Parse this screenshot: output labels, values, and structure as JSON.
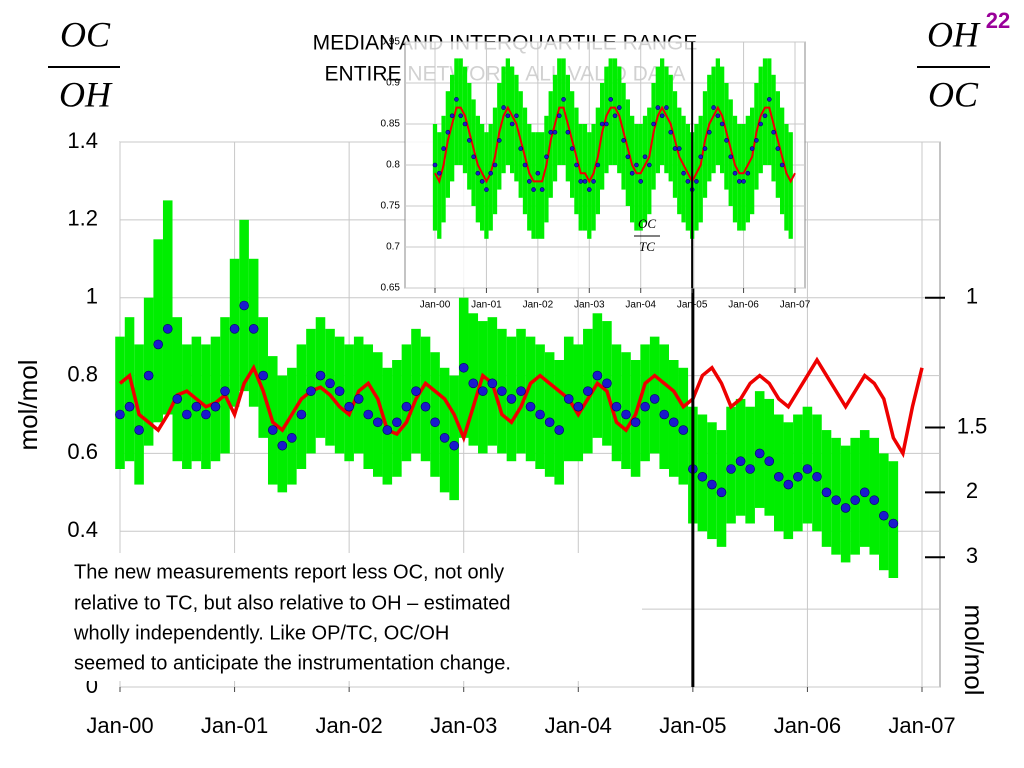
{
  "slide_number": "22",
  "left_fraction": {
    "numerator": "OC",
    "denominator": "OH"
  },
  "right_fraction": {
    "numerator": "OH",
    "denominator": "OC"
  },
  "text_box": [
    "The new measurements report less OC, not only",
    "relative to TC, but also relative to OH – estimated",
    "wholly independently.  Like OP/TC, OC/OH",
    "seemed to anticipate the instrumentation change."
  ],
  "chart_data": [
    {
      "type": "line",
      "title": [
        "MEDIAN AND INTERQUARTILE RANGE",
        "ENTIRE NETWORK, ALL VALID DATA"
      ],
      "ylabel": "mol/mol",
      "y2label": "mol/mol",
      "categories": [
        "Jan-00",
        null,
        null,
        null,
        null,
        null,
        null,
        null,
        null,
        null,
        null,
        null,
        "Jan-01",
        null,
        null,
        null,
        null,
        null,
        null,
        null,
        null,
        null,
        null,
        null,
        "Jan-02",
        null,
        null,
        null,
        null,
        null,
        null,
        null,
        null,
        null,
        null,
        null,
        "Jan-03",
        null,
        null,
        null,
        null,
        null,
        null,
        null,
        null,
        null,
        null,
        null,
        "Jan-04",
        null,
        null,
        null,
        null,
        null,
        null,
        null,
        null,
        null,
        null,
        null,
        "Jan-05",
        null,
        null,
        null,
        null,
        null,
        null,
        null,
        null,
        null,
        null,
        null,
        "Jan-06",
        null,
        null,
        null,
        null,
        null,
        null,
        null,
        null,
        null,
        null,
        null,
        "Jan-07"
      ],
      "ylim": [
        0,
        1.4
      ],
      "yticks": [
        0,
        0.2,
        0.4,
        0.6,
        0.8,
        1,
        1.2,
        1.4
      ],
      "y2scale": "reciprocal",
      "y2ticks": [
        1,
        1.5,
        2,
        3
      ],
      "grid": true,
      "vline": 60,
      "series": [
        {
          "style": "range",
          "color": "#00ee00",
          "high": [
            0.9,
            0.95,
            0.88,
            1.0,
            1.15,
            1.25,
            0.95,
            0.88,
            0.9,
            0.88,
            0.9,
            0.95,
            1.1,
            1.2,
            1.1,
            0.95,
            0.85,
            0.8,
            0.82,
            0.88,
            0.92,
            0.95,
            0.92,
            0.9,
            0.88,
            0.9,
            0.88,
            0.86,
            0.82,
            0.84,
            0.88,
            0.92,
            0.9,
            0.86,
            0.82,
            0.8,
            1.0,
            0.96,
            0.94,
            0.95,
            0.92,
            0.9,
            0.92,
            0.9,
            0.88,
            0.86,
            0.84,
            0.9,
            0.88,
            0.92,
            0.96,
            0.94,
            0.88,
            0.86,
            0.84,
            0.88,
            0.9,
            0.88,
            0.84,
            0.82,
            0.72,
            0.7,
            0.68,
            0.66,
            0.72,
            0.74,
            0.72,
            0.76,
            0.74,
            0.7,
            0.68,
            0.7,
            0.72,
            0.7,
            0.66,
            0.64,
            0.62,
            0.64,
            0.66,
            0.64,
            0.6,
            0.58,
            null,
            null,
            null
          ],
          "low": [
            0.56,
            0.58,
            0.52,
            0.62,
            0.68,
            0.7,
            0.58,
            0.56,
            0.58,
            0.56,
            0.58,
            0.6,
            0.72,
            0.76,
            0.72,
            0.64,
            0.52,
            0.5,
            0.52,
            0.56,
            0.6,
            0.64,
            0.62,
            0.6,
            0.58,
            0.6,
            0.56,
            0.54,
            0.52,
            0.54,
            0.58,
            0.6,
            0.58,
            0.54,
            0.5,
            0.48,
            0.64,
            0.62,
            0.6,
            0.62,
            0.6,
            0.58,
            0.6,
            0.58,
            0.56,
            0.54,
            0.52,
            0.58,
            0.58,
            0.6,
            0.64,
            0.62,
            0.58,
            0.56,
            0.54,
            0.58,
            0.6,
            0.56,
            0.54,
            0.52,
            0.42,
            0.4,
            0.38,
            0.36,
            0.42,
            0.44,
            0.42,
            0.46,
            0.44,
            0.4,
            0.38,
            0.4,
            0.42,
            0.4,
            0.36,
            0.34,
            0.32,
            0.34,
            0.36,
            0.34,
            0.3,
            0.28,
            null,
            null,
            null
          ]
        },
        {
          "style": "line",
          "color": "#ee0000",
          "values": [
            0.78,
            0.8,
            0.7,
            0.68,
            0.66,
            0.7,
            0.75,
            0.76,
            0.74,
            0.72,
            0.73,
            0.75,
            0.7,
            0.78,
            0.82,
            0.76,
            0.68,
            0.66,
            0.7,
            0.74,
            0.76,
            0.77,
            0.75,
            0.72,
            0.7,
            0.76,
            0.78,
            0.74,
            0.66,
            0.65,
            0.68,
            0.74,
            0.78,
            0.76,
            0.74,
            0.7,
            0.64,
            0.72,
            0.8,
            0.78,
            0.7,
            0.68,
            0.72,
            0.78,
            0.8,
            0.78,
            0.76,
            0.74,
            0.7,
            0.74,
            0.78,
            0.76,
            0.68,
            0.66,
            0.7,
            0.78,
            0.8,
            0.78,
            0.76,
            0.72,
            0.74,
            0.8,
            0.82,
            0.78,
            0.72,
            0.74,
            0.78,
            0.8,
            0.78,
            0.74,
            0.72,
            0.76,
            0.8,
            0.84,
            0.8,
            0.76,
            0.72,
            0.76,
            0.8,
            0.78,
            0.74,
            0.64,
            0.6,
            0.72,
            0.82
          ]
        },
        {
          "style": "dots",
          "color": "#1a1acd",
          "values": [
            0.7,
            0.72,
            0.66,
            0.8,
            0.88,
            0.92,
            0.74,
            0.7,
            0.72,
            0.7,
            0.72,
            0.76,
            0.92,
            0.98,
            0.92,
            0.8,
            0.66,
            0.62,
            0.64,
            0.7,
            0.76,
            0.8,
            0.78,
            0.76,
            0.72,
            0.74,
            0.7,
            0.68,
            0.66,
            0.68,
            0.72,
            0.76,
            0.72,
            0.68,
            0.64,
            0.62,
            0.82,
            0.78,
            0.76,
            0.78,
            0.76,
            0.74,
            0.76,
            0.72,
            0.7,
            0.68,
            0.66,
            0.74,
            0.72,
            0.76,
            0.8,
            0.78,
            0.72,
            0.7,
            0.68,
            0.72,
            0.74,
            0.7,
            0.68,
            0.66,
            0.56,
            0.54,
            0.52,
            0.5,
            0.56,
            0.58,
            0.56,
            0.6,
            0.58,
            0.54,
            0.52,
            0.54,
            0.56,
            0.54,
            0.5,
            0.48,
            0.46,
            0.48,
            0.5,
            0.48,
            0.44,
            0.42,
            null,
            null,
            null
          ]
        }
      ]
    },
    {
      "type": "line",
      "annotation": {
        "numerator": "OC",
        "denominator": "TC"
      },
      "categories": [
        "Jan-00",
        null,
        null,
        null,
        null,
        null,
        null,
        null,
        null,
        null,
        null,
        null,
        "Jan-01",
        null,
        null,
        null,
        null,
        null,
        null,
        null,
        null,
        null,
        null,
        null,
        "Jan-02",
        null,
        null,
        null,
        null,
        null,
        null,
        null,
        null,
        null,
        null,
        null,
        "Jan-03",
        null,
        null,
        null,
        null,
        null,
        null,
        null,
        null,
        null,
        null,
        null,
        "Jan-04",
        null,
        null,
        null,
        null,
        null,
        null,
        null,
        null,
        null,
        null,
        null,
        "Jan-05",
        null,
        null,
        null,
        null,
        null,
        null,
        null,
        null,
        null,
        null,
        null,
        "Jan-06",
        null,
        null,
        null,
        null,
        null,
        null,
        null,
        null,
        null,
        null,
        null,
        "Jan-07"
      ],
      "ylim": [
        0.65,
        0.95
      ],
      "yticks": [
        0.65,
        0.7,
        0.75,
        0.8,
        0.85,
        0.9,
        0.95
      ],
      "grid": true,
      "vline": 60,
      "series": [
        {
          "style": "range",
          "color": "#00ee00",
          "high": [
            0.85,
            0.84,
            0.86,
            0.89,
            0.91,
            0.93,
            0.93,
            0.92,
            0.9,
            0.88,
            0.86,
            0.85,
            0.84,
            0.85,
            0.87,
            0.9,
            0.92,
            0.93,
            0.92,
            0.91,
            0.89,
            0.87,
            0.85,
            0.84,
            0.84,
            0.84,
            0.86,
            0.89,
            0.91,
            0.93,
            0.93,
            0.91,
            0.89,
            0.87,
            0.85,
            0.85,
            0.84,
            0.85,
            0.87,
            0.9,
            0.92,
            0.93,
            0.93,
            0.92,
            0.9,
            0.88,
            0.86,
            0.85,
            0.85,
            0.86,
            0.87,
            0.9,
            0.92,
            0.93,
            0.92,
            0.91,
            0.89,
            0.87,
            0.86,
            0.85,
            0.84,
            0.85,
            0.86,
            0.89,
            0.91,
            0.92,
            0.93,
            0.92,
            0.9,
            0.88,
            0.86,
            0.85,
            0.85,
            0.86,
            0.87,
            0.9,
            0.92,
            0.93,
            0.93,
            0.91,
            0.89,
            0.87,
            0.85,
            0.84,
            null
          ],
          "low": [
            0.72,
            0.71,
            0.73,
            0.76,
            0.78,
            0.8,
            0.8,
            0.79,
            0.77,
            0.75,
            0.73,
            0.72,
            0.71,
            0.72,
            0.74,
            0.77,
            0.79,
            0.8,
            0.79,
            0.78,
            0.76,
            0.74,
            0.72,
            0.71,
            0.71,
            0.71,
            0.73,
            0.76,
            0.78,
            0.8,
            0.8,
            0.78,
            0.76,
            0.74,
            0.72,
            0.72,
            0.71,
            0.72,
            0.74,
            0.77,
            0.79,
            0.8,
            0.8,
            0.79,
            0.77,
            0.75,
            0.73,
            0.72,
            0.72,
            0.73,
            0.74,
            0.77,
            0.79,
            0.8,
            0.79,
            0.78,
            0.76,
            0.74,
            0.73,
            0.72,
            0.71,
            0.72,
            0.73,
            0.76,
            0.78,
            0.79,
            0.8,
            0.79,
            0.77,
            0.75,
            0.73,
            0.72,
            0.72,
            0.73,
            0.74,
            0.77,
            0.79,
            0.8,
            0.8,
            0.78,
            0.76,
            0.74,
            0.72,
            0.71,
            null
          ]
        },
        {
          "style": "line",
          "color": "#ee0000",
          "values": [
            0.79,
            0.78,
            0.8,
            0.83,
            0.85,
            0.87,
            0.87,
            0.86,
            0.84,
            0.82,
            0.8,
            0.79,
            0.78,
            0.79,
            0.81,
            0.84,
            0.86,
            0.87,
            0.86,
            0.85,
            0.83,
            0.81,
            0.79,
            0.78,
            0.78,
            0.78,
            0.8,
            0.83,
            0.85,
            0.87,
            0.87,
            0.85,
            0.83,
            0.81,
            0.79,
            0.79,
            0.78,
            0.79,
            0.81,
            0.84,
            0.86,
            0.87,
            0.87,
            0.86,
            0.84,
            0.82,
            0.8,
            0.79,
            0.79,
            0.8,
            0.81,
            0.84,
            0.86,
            0.87,
            0.86,
            0.85,
            0.83,
            0.81,
            0.8,
            0.79,
            0.78,
            0.79,
            0.8,
            0.83,
            0.85,
            0.86,
            0.87,
            0.86,
            0.84,
            0.82,
            0.8,
            0.79,
            0.79,
            0.8,
            0.81,
            0.84,
            0.86,
            0.87,
            0.87,
            0.85,
            0.83,
            0.81,
            0.79,
            0.78,
            0.79
          ]
        },
        {
          "style": "dots",
          "color": "#1a1acd",
          "values": [
            0.8,
            0.79,
            0.82,
            0.84,
            0.86,
            0.88,
            0.86,
            0.85,
            0.83,
            0.81,
            0.79,
            0.78,
            0.77,
            0.79,
            0.8,
            0.83,
            0.87,
            0.86,
            0.85,
            0.86,
            0.82,
            0.8,
            0.78,
            0.77,
            0.79,
            0.77,
            0.81,
            0.84,
            0.84,
            0.86,
            0.88,
            0.84,
            0.82,
            0.8,
            0.78,
            0.78,
            0.77,
            0.78,
            0.8,
            0.85,
            0.85,
            0.88,
            0.86,
            0.87,
            0.83,
            0.81,
            0.79,
            0.8,
            0.78,
            0.81,
            0.8,
            0.85,
            0.87,
            0.86,
            0.87,
            0.84,
            0.82,
            0.82,
            0.79,
            0.78,
            0.77,
            0.78,
            0.81,
            0.82,
            0.84,
            0.87,
            0.86,
            0.85,
            0.83,
            0.81,
            0.79,
            0.78,
            0.78,
            0.79,
            0.82,
            0.83,
            0.85,
            0.86,
            0.88,
            0.84,
            0.82,
            0.8,
            null,
            null,
            null
          ]
        }
      ]
    }
  ]
}
